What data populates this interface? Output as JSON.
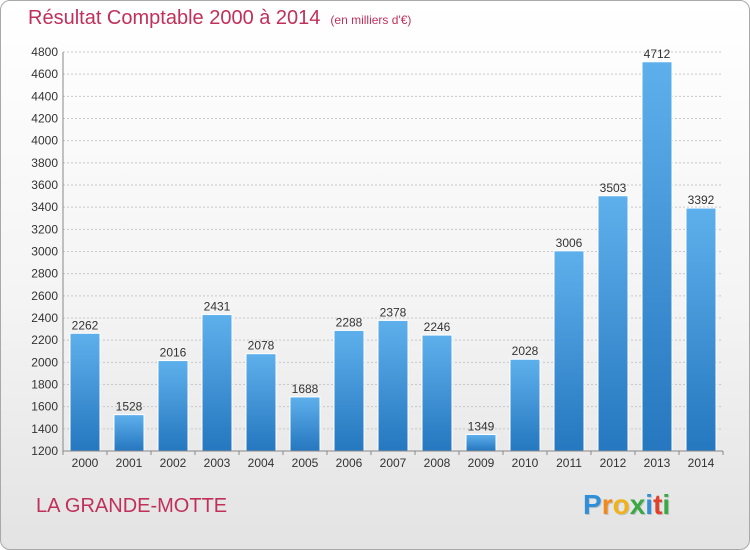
{
  "chart_data": {
    "type": "bar",
    "title": "Résultat Comptable 2000 à 2014",
    "subtitle": "(en milliers d'€)",
    "categories": [
      "2000",
      "2001",
      "2002",
      "2003",
      "2004",
      "2005",
      "2006",
      "2007",
      "2008",
      "2009",
      "2010",
      "2011",
      "2012",
      "2013",
      "2014"
    ],
    "values": [
      2262,
      1528,
      2016,
      2431,
      2078,
      1688,
      2288,
      2378,
      2246,
      1349,
      2028,
      3006,
      3503,
      4712,
      3392
    ],
    "ylim": [
      1200,
      4800
    ],
    "yticks": [
      1200,
      1400,
      1600,
      1800,
      2000,
      2200,
      2400,
      2600,
      2800,
      3000,
      3200,
      3400,
      3600,
      3800,
      4000,
      4200,
      4400,
      4600,
      4800
    ],
    "grid": true,
    "bar_color": "#3a8fd6"
  },
  "footer": {
    "town": "LA GRANDE-MOTTE"
  },
  "logo": {
    "text": "Proxiti",
    "letters": [
      "P",
      "r",
      "o",
      "x",
      "i",
      "t",
      "i"
    ]
  }
}
